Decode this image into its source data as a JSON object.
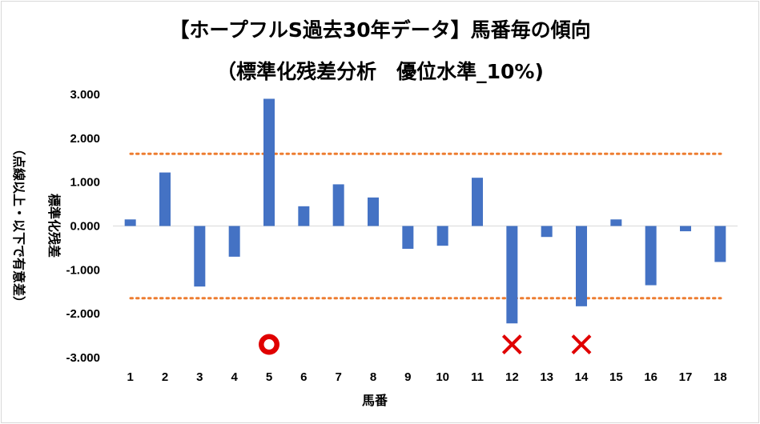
{
  "chart_data": {
    "type": "bar",
    "title_line1": "【ホープフルS過去30年データ】馬番毎の傾向",
    "title_line2": "（標準化残差分析　優位水準_10%)",
    "xlabel": "馬番",
    "ylabel_main": "標準化残差",
    "ylabel_sub": "（点線以上・以下で有意差）",
    "categories": [
      "1",
      "2",
      "3",
      "4",
      "5",
      "6",
      "7",
      "8",
      "9",
      "10",
      "11",
      "12",
      "13",
      "14",
      "15",
      "16",
      "17",
      "18"
    ],
    "values": [
      0.15,
      1.22,
      -1.38,
      -0.7,
      2.9,
      0.45,
      0.95,
      0.65,
      -0.52,
      -0.45,
      1.1,
      -2.22,
      -0.25,
      -1.83,
      0.15,
      -1.35,
      -0.12,
      -0.82
    ],
    "ylim": [
      -3.0,
      3.0
    ],
    "yticks": [
      "3.000",
      "2.000",
      "1.000",
      "0.000",
      "-1.000",
      "-2.000",
      "-3.000"
    ],
    "threshold_upper": 1.645,
    "threshold_lower": -1.645,
    "bar_color": "#4472c4",
    "threshold_color": "#ed7d31",
    "markers": [
      {
        "category": "5",
        "symbol": "circle",
        "color": "#e00000",
        "value": -2.7
      },
      {
        "category": "12",
        "symbol": "cross",
        "color": "#e00000",
        "value": -2.7
      },
      {
        "category": "14",
        "symbol": "cross",
        "color": "#e00000",
        "value": -2.7
      }
    ]
  }
}
